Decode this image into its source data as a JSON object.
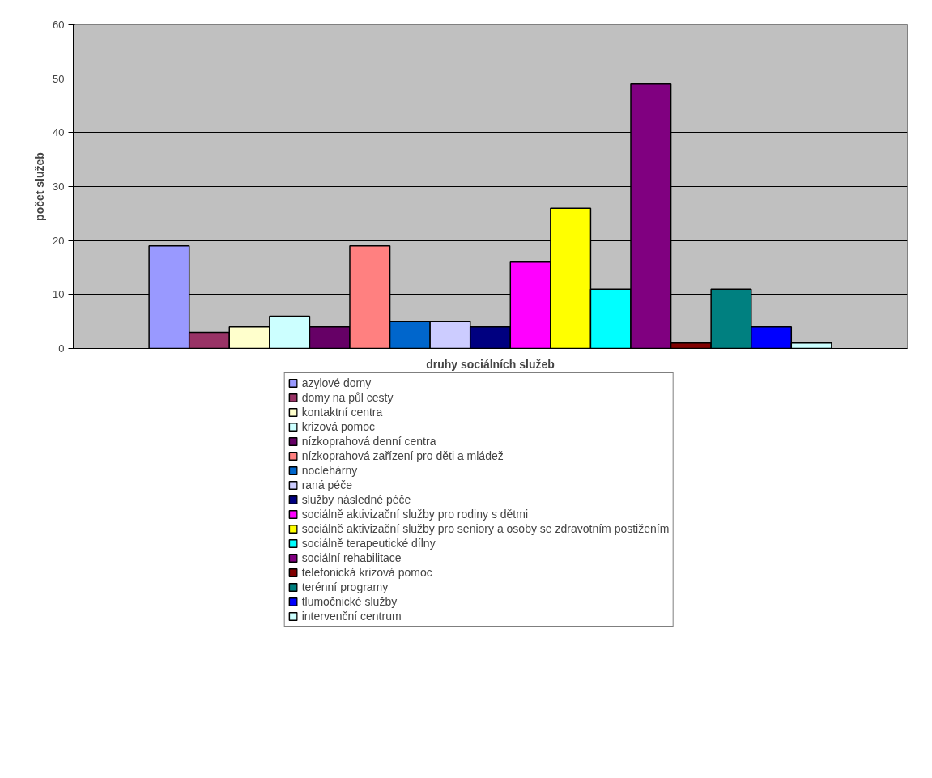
{
  "chart_data": {
    "type": "bar",
    "xlabel": "druhy sociálních služeb",
    "ylabel": "počet služeb",
    "categories": [
      null
    ],
    "series": [
      {
        "name": "azylové domy",
        "color": "#9999ff",
        "values": [
          19
        ]
      },
      {
        "name": "domy na půl cesty",
        "color": "#993366",
        "values": [
          3
        ]
      },
      {
        "name": "kontaktní centra",
        "color": "#ffffcc",
        "values": [
          4
        ]
      },
      {
        "name": "krizová pomoc",
        "color": "#ccffff",
        "values": [
          6
        ]
      },
      {
        "name": "nízkoprahová denní centra",
        "color": "#660066",
        "values": [
          4
        ]
      },
      {
        "name": "nízkoprahová zařízení pro děti a mládež",
        "color": "#ff8080",
        "values": [
          19
        ]
      },
      {
        "name": "noclehárny",
        "color": "#0066cc",
        "values": [
          5
        ]
      },
      {
        "name": "raná péče",
        "color": "#ccccff",
        "values": [
          5
        ]
      },
      {
        "name": "služby následné péče",
        "color": "#000080",
        "values": [
          4
        ]
      },
      {
        "name": "sociálně aktivizační služby pro rodiny s dětmi",
        "color": "#ff00ff",
        "values": [
          16
        ]
      },
      {
        "name": "sociálně aktivizační služby pro seniory a osoby se zdravotním postižením",
        "color": "#ffff00",
        "values": [
          26
        ]
      },
      {
        "name": "sociálně terapeutické dílny",
        "color": "#00ffff",
        "values": [
          11
        ]
      },
      {
        "name": "sociální rehabilitace",
        "color": "#800080",
        "values": [
          49
        ]
      },
      {
        "name": "telefonická krizová pomoc",
        "color": "#800000",
        "values": [
          1
        ]
      },
      {
        "name": "terénní programy",
        "color": "#008080",
        "values": [
          11
        ]
      },
      {
        "name": "tlumočnické služby",
        "color": "#0000ff",
        "values": [
          4
        ]
      },
      {
        "name": "intervenční centrum",
        "color": "#ccffff",
        "values": [
          1
        ]
      }
    ],
    "ylim": [
      0,
      60
    ],
    "yticks": [
      0,
      10,
      20,
      30,
      40,
      50,
      60
    ],
    "grid": "y",
    "legend": "bottom",
    "tick_labels": "y"
  }
}
